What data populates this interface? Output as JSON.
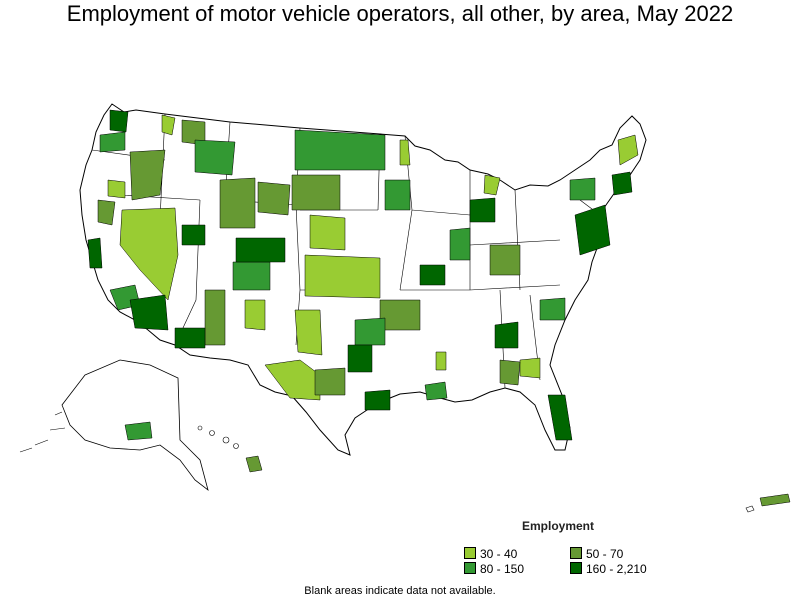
{
  "title": "Employment of motor vehicle operators, all other, by area, May 2022",
  "legend": {
    "title": "Employment",
    "items": [
      {
        "label": "30 - 40",
        "color": "#99cc33"
      },
      {
        "label": "50 - 70",
        "color": "#669933"
      },
      {
        "label": "80 - 150",
        "color": "#339933"
      },
      {
        "label": "160 - 2,210",
        "color": "#006600"
      }
    ]
  },
  "note": "Blank areas indicate data not available.",
  "colors": {
    "no_data": "#ffffff",
    "border": "#000000"
  }
}
